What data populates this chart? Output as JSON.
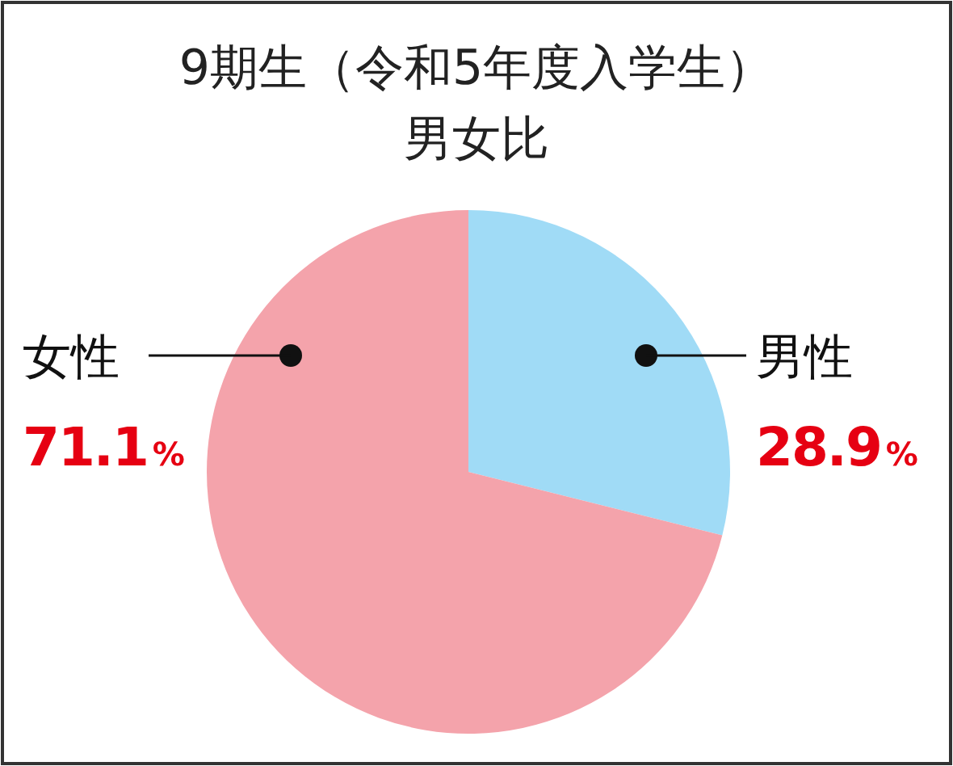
{
  "chart_data": {
    "type": "pie",
    "title": "9期生（令和5年度入学生）",
    "subtitle": "男女比",
    "categories": [
      "男性",
      "女性"
    ],
    "values": [
      28.9,
      71.1
    ],
    "colors": [
      "#a0dbf6",
      "#f4a3ab"
    ],
    "value_labels": [
      "28.9%",
      "71.1%"
    ]
  }
}
